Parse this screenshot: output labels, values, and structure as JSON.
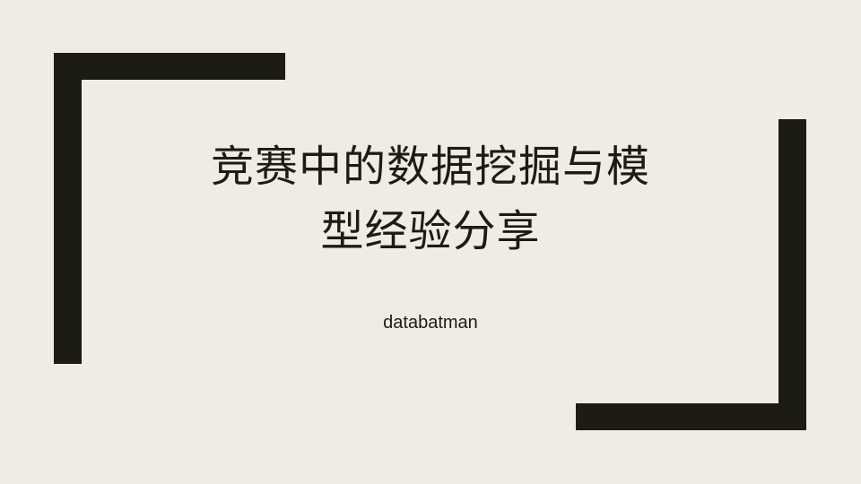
{
  "slide": {
    "title_line1": "竞赛中的数据挖掘与模",
    "title_line2": "型经验分享",
    "subtitle": "databatman"
  },
  "colors": {
    "background": "#efece5",
    "accent": "#1c1c12"
  }
}
